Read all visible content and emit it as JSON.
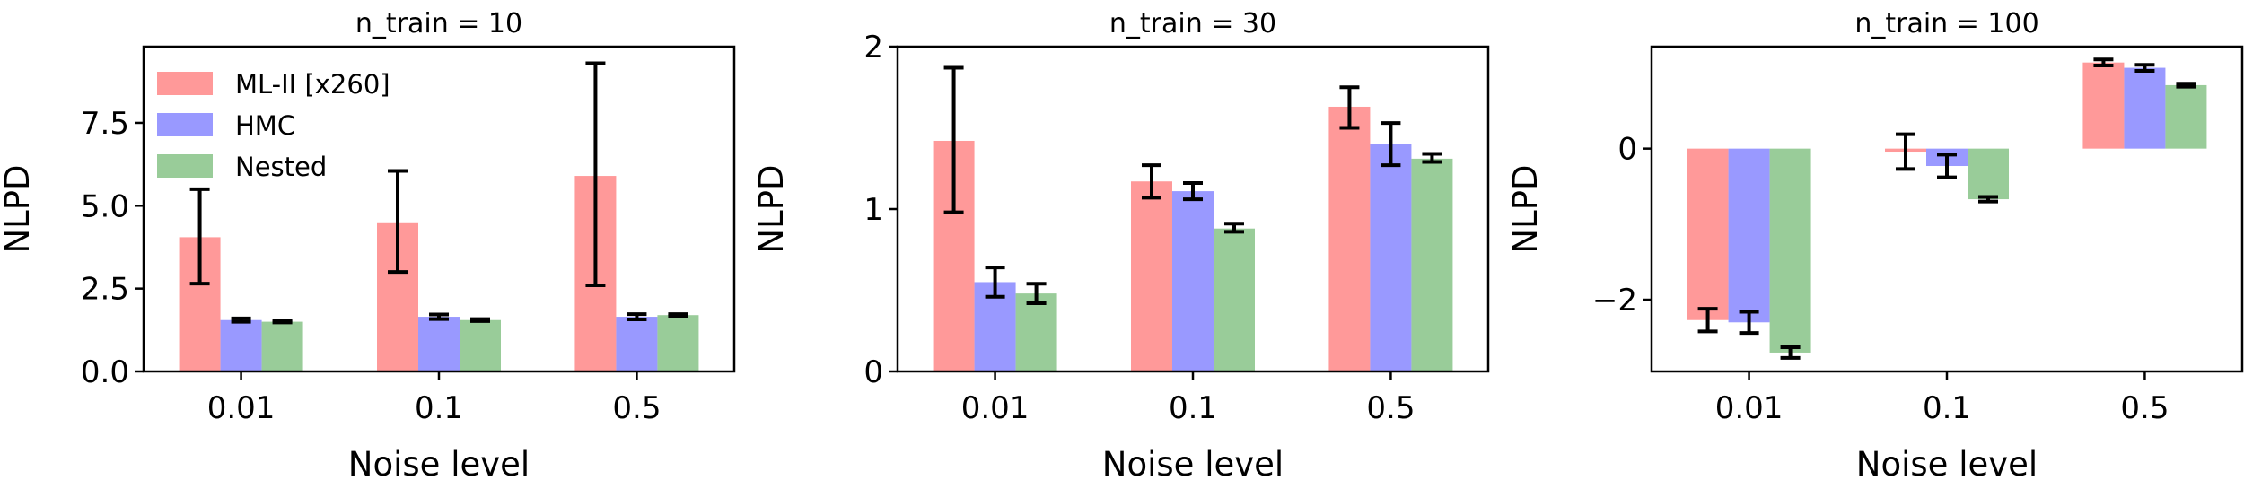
{
  "figure": {
    "colors": {
      "ML-II [x260]": "#ff9999",
      "HMC": "#9999ff",
      "Nested": "#99cc99",
      "error": "#000000"
    }
  },
  "chart_data": [
    {
      "type": "bar",
      "title": "n_train = 10",
      "xlabel": "Noise level",
      "ylabel": "NLPD",
      "categories": [
        "0.01",
        "0.1",
        "0.5"
      ],
      "ylim": [
        0,
        9.8
      ],
      "yticks": [
        0.0,
        2.5,
        5.0,
        7.5
      ],
      "ytick_labels": [
        "0.0",
        "2.5",
        "5.0",
        "7.5"
      ],
      "legend": {
        "location": "upper-left",
        "entries": [
          "ML-II [x260]",
          "HMC",
          "Nested"
        ]
      },
      "series": [
        {
          "name": "ML-II [x260]",
          "values": [
            4.05,
            4.5,
            5.9
          ],
          "err_low": [
            2.65,
            3.0,
            2.6
          ],
          "err_high": [
            5.5,
            6.05,
            9.3
          ]
        },
        {
          "name": "HMC",
          "values": [
            1.55,
            1.65,
            1.65
          ],
          "err_low": [
            1.5,
            1.58,
            1.57
          ],
          "err_high": [
            1.6,
            1.72,
            1.73
          ]
        },
        {
          "name": "Nested",
          "values": [
            1.5,
            1.55,
            1.7
          ],
          "err_low": [
            1.48,
            1.52,
            1.68
          ],
          "err_high": [
            1.53,
            1.58,
            1.73
          ]
        }
      ]
    },
    {
      "type": "bar",
      "title": "n_train = 30",
      "xlabel": "Noise level",
      "ylabel": "NLPD",
      "categories": [
        "0.01",
        "0.1",
        "0.5"
      ],
      "ylim": [
        0,
        2.0
      ],
      "yticks": [
        0,
        1,
        2
      ],
      "ytick_labels": [
        "0",
        "1",
        "2"
      ],
      "series": [
        {
          "name": "ML-II [x260]",
          "values": [
            1.42,
            1.17,
            1.63
          ],
          "err_low": [
            0.98,
            1.07,
            1.5
          ],
          "err_high": [
            1.87,
            1.27,
            1.75
          ]
        },
        {
          "name": "HMC",
          "values": [
            0.55,
            1.11,
            1.4
          ],
          "err_low": [
            0.46,
            1.06,
            1.27
          ],
          "err_high": [
            0.64,
            1.16,
            1.53
          ]
        },
        {
          "name": "Nested",
          "values": [
            0.48,
            0.88,
            1.31
          ],
          "err_low": [
            0.42,
            0.86,
            1.29
          ],
          "err_high": [
            0.54,
            0.91,
            1.34
          ]
        }
      ]
    },
    {
      "type": "bar",
      "title": "n_train = 100",
      "xlabel": "Noise level",
      "ylabel": "NLPD",
      "categories": [
        "0.01",
        "0.1",
        "0.5"
      ],
      "ylim": [
        -2.95,
        1.35
      ],
      "yticks": [
        -2,
        0
      ],
      "ytick_labels": [
        "−2",
        "0"
      ],
      "series": [
        {
          "name": "ML-II [x260]",
          "values": [
            -2.27,
            -0.04,
            1.14
          ],
          "err_low": [
            -2.42,
            -0.27,
            1.1
          ],
          "err_high": [
            -2.12,
            0.19,
            1.18
          ]
        },
        {
          "name": "HMC",
          "values": [
            -2.3,
            -0.23,
            1.07
          ],
          "err_low": [
            -2.44,
            -0.38,
            1.03
          ],
          "err_high": [
            -2.16,
            -0.08,
            1.11
          ]
        },
        {
          "name": "Nested",
          "values": [
            -2.7,
            -0.67,
            0.84
          ],
          "err_low": [
            -2.77,
            -0.7,
            0.82
          ],
          "err_high": [
            -2.63,
            -0.64,
            0.86
          ]
        }
      ]
    }
  ]
}
